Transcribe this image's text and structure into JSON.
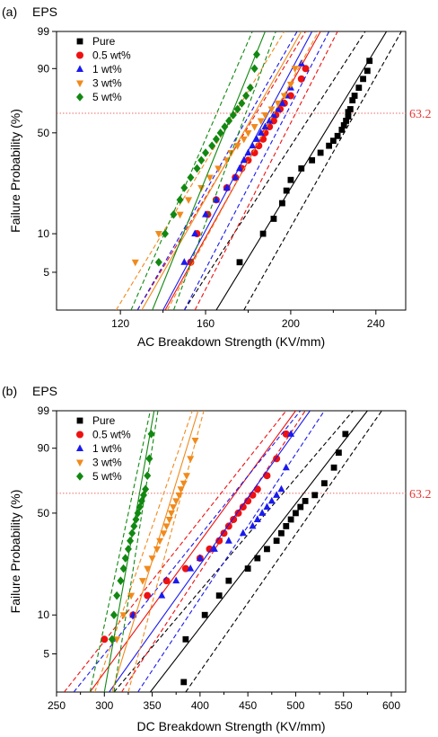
{
  "colors": {
    "Pure": "#000000",
    "0.5 wt%": "#ee1111",
    "1 wt%": "#1a1aee",
    "3 wt%": "#f08a1c",
    "5 wt%": "#118811",
    "ref": "#e53935"
  },
  "chart_data": [
    {
      "type": "scatter",
      "panel_label": "(a)",
      "title": "EPS",
      "xlabel": "AC Breakdown Strength (KV/mm)",
      "ylabel": "Failure Probability (%)",
      "x_ticks": [
        120,
        160,
        200,
        240
      ],
      "xlim": [
        90,
        254
      ],
      "y_ticks": [
        5,
        10,
        50,
        90,
        99
      ],
      "ylim": [
        2.5,
        99
      ],
      "y_scale": "weibull",
      "reference_line": {
        "y": 63.2,
        "label": "63.2"
      },
      "legend": [
        "Pure",
        "0.5 wt%",
        "1 wt%",
        "3 wt%",
        "5 wt%"
      ],
      "legend_position": "top-left",
      "series": [
        {
          "name": "Pure",
          "marker": "square",
          "x": [
            176,
            187,
            192,
            196,
            198,
            200,
            205,
            210,
            214,
            218,
            220,
            222,
            224,
            225,
            226,
            227,
            227,
            228,
            229,
            230,
            232,
            234,
            236,
            237
          ],
          "y": [
            6,
            10,
            13,
            17,
            21,
            25,
            30,
            34,
            38,
            42,
            45,
            48,
            52,
            55,
            58,
            61,
            64,
            66,
            72,
            75,
            80,
            85,
            89,
            93
          ],
          "fit": {
            "x": [
              165,
              245
            ],
            "y": [
              2.5,
              99
            ]
          },
          "ci_low": {
            "x": [
              178,
              252
            ],
            "y": [
              2.5,
              99
            ]
          },
          "ci_high": {
            "x": [
              150,
              235
            ],
            "y": [
              2.5,
              99
            ]
          }
        },
        {
          "name": "0.5 wt%",
          "marker": "circle",
          "x": [
            153,
            156,
            161,
            165,
            170,
            174,
            177,
            180,
            183,
            185,
            187,
            188,
            190,
            192,
            193,
            195,
            197,
            200,
            205,
            207
          ],
          "y": [
            6,
            10,
            14,
            18,
            22,
            26,
            30,
            34,
            38,
            42,
            46,
            50,
            54,
            58,
            62,
            66,
            70,
            75,
            85,
            90
          ],
          "fit": {
            "x": [
              141,
              214
            ],
            "y": [
              2.5,
              99
            ]
          },
          "ci_low": {
            "x": [
              155,
              222
            ],
            "y": [
              2.5,
              99
            ]
          },
          "ci_high": {
            "x": [
              128,
              207
            ],
            "y": [
              2.5,
              99
            ]
          }
        },
        {
          "name": "1 wt%",
          "marker": "triangle-up",
          "x": [
            150,
            155,
            160,
            165,
            170,
            174,
            176,
            178,
            180,
            182,
            184,
            186,
            188,
            190,
            192,
            194,
            196,
            198,
            200,
            205
          ],
          "y": [
            6,
            10,
            14,
            18,
            22,
            26,
            30,
            34,
            38,
            42,
            46,
            50,
            54,
            58,
            62,
            66,
            70,
            75,
            80,
            92
          ],
          "fit": {
            "x": [
              140,
              210
            ],
            "y": [
              2.5,
              99
            ]
          },
          "ci_low": {
            "x": [
              150,
              218
            ],
            "y": [
              2.5,
              99
            ]
          },
          "ci_high": {
            "x": [
              128,
              203
            ],
            "y": [
              2.5,
              99
            ]
          }
        },
        {
          "name": "3 wt%",
          "marker": "triangle-down",
          "x": [
            127,
            138,
            148,
            152,
            158,
            162,
            166,
            170,
            172,
            175,
            178,
            180,
            183,
            186,
            188,
            191,
            194,
            197,
            200,
            202
          ],
          "y": [
            6,
            10,
            14,
            18,
            22,
            26,
            30,
            34,
            38,
            42,
            46,
            50,
            54,
            58,
            62,
            66,
            70,
            75,
            82,
            90
          ],
          "fit": {
            "x": [
              130,
              205
            ],
            "y": [
              2.5,
              99
            ]
          },
          "ci_low": {
            "x": [
              142,
              213
            ],
            "y": [
              2.5,
              99
            ]
          },
          "ci_high": {
            "x": [
              118,
              197
            ],
            "y": [
              2.5,
              99
            ]
          }
        },
        {
          "name": "5 wt%",
          "marker": "diamond",
          "x": [
            138,
            141,
            145,
            148,
            150,
            153,
            156,
            158,
            160,
            163,
            165,
            167,
            169,
            171,
            173,
            175,
            177,
            179,
            181,
            183,
            184
          ],
          "y": [
            6,
            10,
            14,
            18,
            22,
            26,
            30,
            34,
            38,
            42,
            46,
            50,
            54,
            58,
            62,
            66,
            70,
            75,
            80,
            90,
            95
          ],
          "fit": {
            "x": [
              135,
              188
            ],
            "y": [
              2.5,
              99
            ]
          },
          "ci_low": {
            "x": [
              145,
              193
            ],
            "y": [
              2.5,
              99
            ]
          },
          "ci_high": {
            "x": [
              125,
              182
            ],
            "y": [
              2.5,
              99
            ]
          }
        }
      ]
    },
    {
      "type": "scatter",
      "panel_label": "(b)",
      "title": "EPS",
      "xlabel": "DC Breakdown Strength (KV/mm)",
      "ylabel": "Failure Probability (%)",
      "x_ticks": [
        250,
        300,
        350,
        400,
        450,
        500,
        550,
        600
      ],
      "xlim": [
        250,
        615
      ],
      "y_ticks": [
        5,
        10,
        50,
        90,
        99
      ],
      "ylim": [
        2.5,
        99
      ],
      "y_scale": "weibull",
      "reference_line": {
        "y": 63.2,
        "label": "63.2"
      },
      "legend": [
        "Pure",
        "0.5 wt%",
        "1 wt%",
        "3 wt%",
        "5 wt%"
      ],
      "legend_position": "top-left",
      "series": [
        {
          "name": "Pure",
          "marker": "square",
          "x": [
            383,
            385,
            405,
            420,
            430,
            450,
            460,
            470,
            480,
            485,
            490,
            495,
            500,
            505,
            510,
            520,
            530,
            540,
            545,
            552
          ],
          "y": [
            3,
            6.5,
            10,
            14,
            18,
            22,
            26,
            30,
            34,
            38,
            42,
            46,
            50,
            54,
            58,
            62,
            70,
            80,
            88,
            95
          ],
          "fit": {
            "x": [
              348,
              575
            ],
            "y": [
              2.5,
              99
            ]
          },
          "ci_low": {
            "x": [
              385,
              590
            ],
            "y": [
              2.5,
              99
            ]
          },
          "ci_high": {
            "x": [
              310,
              560
            ],
            "y": [
              2.5,
              99
            ]
          }
        },
        {
          "name": "0.5 wt%",
          "marker": "circle",
          "x": [
            300,
            330,
            345,
            365,
            385,
            400,
            410,
            420,
            425,
            430,
            435,
            440,
            445,
            450,
            455,
            460,
            470,
            480,
            490
          ],
          "y": [
            6.5,
            10,
            14,
            18,
            22,
            26,
            30,
            34,
            38,
            42,
            46,
            50,
            54,
            58,
            62,
            66,
            75,
            85,
            95
          ],
          "fit": {
            "x": [
              285,
              500
            ],
            "y": [
              2.5,
              99
            ]
          },
          "ci_low": {
            "x": [
              318,
              510
            ],
            "y": [
              2.5,
              99
            ]
          },
          "ci_high": {
            "x": [
              258,
              490
            ],
            "y": [
              2.5,
              99
            ]
          }
        },
        {
          "name": "1 wt%",
          "marker": "triangle-up",
          "x": [
            330,
            360,
            375,
            390,
            400,
            415,
            430,
            445,
            455,
            460,
            465,
            470,
            475,
            480,
            485,
            490,
            495
          ],
          "y": [
            10,
            14,
            18,
            22,
            26,
            30,
            34,
            38,
            42,
            46,
            50,
            54,
            58,
            62,
            66,
            80,
            95
          ],
          "fit": {
            "x": [
              305,
              515
            ],
            "y": [
              2.5,
              99
            ]
          },
          "ci_low": {
            "x": [
              335,
              530
            ],
            "y": [
              2.5,
              99
            ]
          },
          "ci_high": {
            "x": [
              268,
              505
            ],
            "y": [
              2.5,
              99
            ]
          }
        },
        {
          "name": "3 wt%",
          "marker": "triangle-down",
          "x": [
            313,
            320,
            328,
            340,
            345,
            350,
            355,
            358,
            362,
            365,
            368,
            370,
            372,
            375,
            378,
            380,
            383,
            386,
            390,
            395
          ],
          "y": [
            6.5,
            10,
            14,
            18,
            22,
            26,
            30,
            34,
            38,
            42,
            46,
            50,
            54,
            58,
            62,
            66,
            70,
            75,
            85,
            93
          ],
          "fit": {
            "x": [
              308,
              398
            ],
            "y": [
              2.5,
              99
            ]
          },
          "ci_low": {
            "x": [
              325,
              404
            ],
            "y": [
              2.5,
              99
            ]
          },
          "ci_high": {
            "x": [
              290,
              392
            ],
            "y": [
              2.5,
              99
            ]
          }
        },
        {
          "name": "5 wt%",
          "marker": "diamond",
          "x": [
            308,
            310,
            313,
            317,
            320,
            322,
            325,
            327,
            329,
            331,
            333,
            335,
            337,
            339,
            341,
            343,
            345,
            347,
            349
          ],
          "y": [
            6.5,
            10,
            14,
            18,
            22,
            26,
            30,
            34,
            38,
            42,
            46,
            50,
            54,
            58,
            62,
            66,
            75,
            85,
            95
          ],
          "fit": {
            "x": [
              300,
              352
            ],
            "y": [
              2.5,
              99
            ]
          },
          "ci_low": {
            "x": [
              310,
              356
            ],
            "y": [
              2.5,
              99
            ]
          },
          "ci_high": {
            "x": [
              285,
              348
            ],
            "y": [
              2.5,
              99
            ]
          }
        }
      ]
    }
  ]
}
